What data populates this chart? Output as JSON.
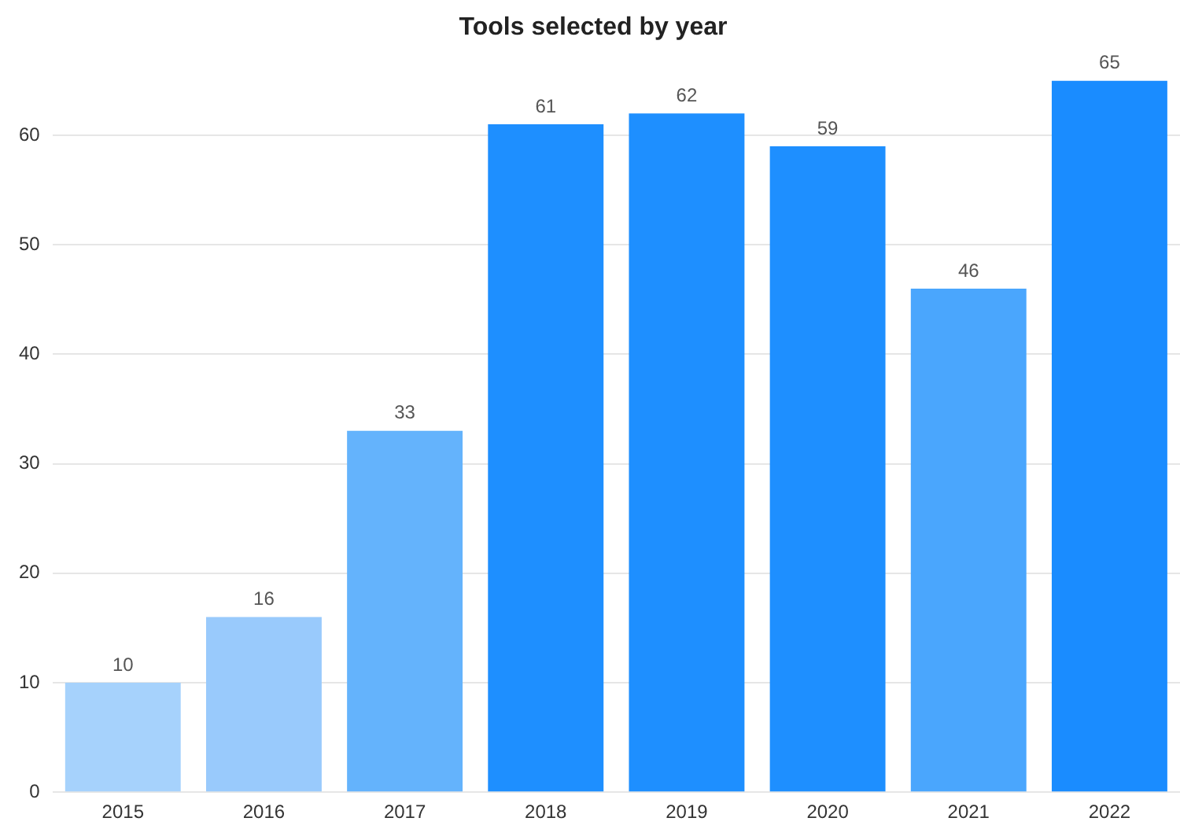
{
  "chart_data": {
    "type": "bar",
    "title": "Tools selected by year",
    "categories": [
      "2015",
      "2016",
      "2017",
      "2018",
      "2019",
      "2020",
      "2021",
      "2022"
    ],
    "values": [
      10,
      16,
      33,
      61,
      62,
      59,
      46,
      65
    ],
    "colors": [
      "#a6d2fc",
      "#99cafc",
      "#64b3fc",
      "#1e8fff",
      "#1e8fff",
      "#1e8fff",
      "#4aa6fd",
      "#1a8cff"
    ],
    "ylim": [
      0,
      65
    ],
    "yticks": [
      0,
      10,
      20,
      30,
      40,
      50,
      60
    ],
    "grid": "y",
    "data_labels": true,
    "legend": false
  }
}
